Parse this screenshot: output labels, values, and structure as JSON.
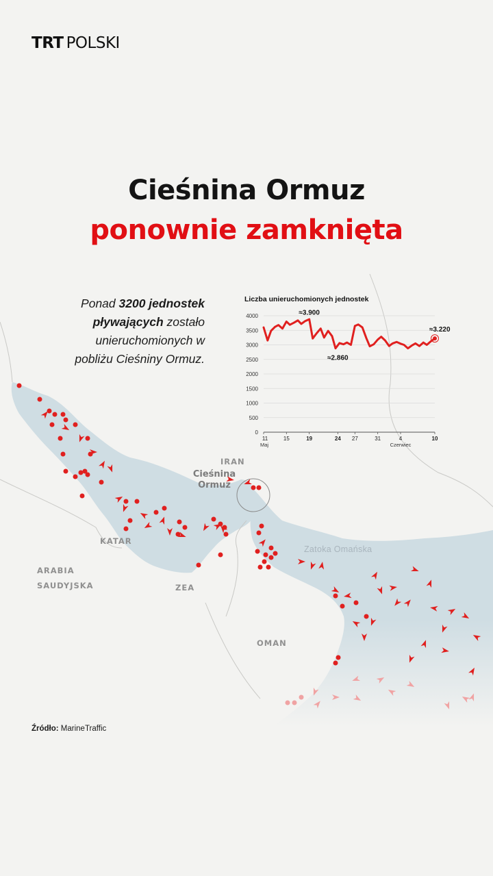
{
  "brand": {
    "trt": "TRT",
    "name": "POLSKI"
  },
  "headline": {
    "line1": "Cieśnina Ormuz",
    "line2": "ponownie zamknięta"
  },
  "lead": {
    "pre": "Ponad ",
    "bold1": "3200 jednostek",
    "bold2": "pływających",
    "mid": " zostało",
    "line3": "unieruchomionych w",
    "line4": "pobliżu Cieśniny Ormuz."
  },
  "map_labels": {
    "iran": "IRAN",
    "strait_l1": "Cieśnina",
    "strait_l2": "Ormuz",
    "gulf_oman": "Zatoka Omańska",
    "qatar": "KATAR",
    "arabia_l1": "ARABIA",
    "arabia_l2": "SAUDYJSKA",
    "uae": "ZEA",
    "oman": "OMAN"
  },
  "source": {
    "label": "Źródło:",
    "value": " MarineTraffic"
  },
  "colors": {
    "accent": "#e10f14",
    "sea": "#cfdde3",
    "line": "#e0201f",
    "text": "#141414"
  },
  "chart_data": {
    "type": "line",
    "title": "Liczba unieruchomionych jednostek",
    "ylim": [
      0,
      4000
    ],
    "yticks": [
      "4000",
      "3500",
      "3000",
      "2500",
      "2000",
      "1500",
      "1000",
      "500",
      "0"
    ],
    "ytick_values": [
      4000,
      3500,
      3000,
      2500,
      2000,
      1500,
      1000,
      500,
      0
    ],
    "xticks": [
      {
        "day": 11,
        "label": "11",
        "sub": "Maj",
        "bold": false
      },
      {
        "day": 15,
        "label": "15",
        "sub": "",
        "bold": false
      },
      {
        "day": 19,
        "label": "19",
        "sub": "",
        "bold": true
      },
      {
        "day": 24,
        "label": "24",
        "sub": "",
        "bold": true
      },
      {
        "day": 27,
        "label": "27",
        "sub": "",
        "bold": false
      },
      {
        "day": 31,
        "label": "31",
        "sub": "",
        "bold": false
      },
      {
        "day": 35,
        "label": "4",
        "sub": "Czerwiec",
        "bold": false
      },
      {
        "day": 41,
        "label": "10",
        "sub": "",
        "bold": true
      }
    ],
    "xlim": [
      11,
      41
    ],
    "series": [
      {
        "x": [
          11,
          11.7,
          12.3,
          13,
          13.6,
          14.3,
          15,
          15.6,
          16.3,
          17,
          17.6,
          18.3,
          19,
          19.6,
          20.3,
          21,
          21.6,
          22.3,
          23,
          23.6,
          24.3,
          25,
          25.6,
          26.3,
          27,
          27.6,
          28.3,
          29,
          29.6,
          30.3,
          31,
          31.6,
          32.3,
          33,
          33.6,
          34.3,
          35,
          35.6,
          36.3,
          37,
          37.6,
          38.3,
          39,
          39.6,
          40.3,
          41
        ],
        "values": [
          3600,
          3150,
          3480,
          3620,
          3680,
          3560,
          3800,
          3690,
          3760,
          3840,
          3720,
          3820,
          3880,
          3220,
          3400,
          3560,
          3250,
          3480,
          3300,
          2880,
          3060,
          3020,
          3080,
          3000,
          3650,
          3700,
          3600,
          3230,
          2950,
          3020,
          3180,
          3280,
          3150,
          2960,
          3050,
          3100,
          3040,
          3000,
          2880,
          2980,
          3050,
          2960,
          3080,
          3000,
          3120,
          3220
        ]
      }
    ],
    "annotations": [
      {
        "day": 19,
        "value": 3900,
        "text": "≈3.900"
      },
      {
        "day": 24,
        "value": 2860,
        "text": "≈2.860"
      },
      {
        "day": 41,
        "value": 3220,
        "text": "≈3.220"
      }
    ]
  }
}
